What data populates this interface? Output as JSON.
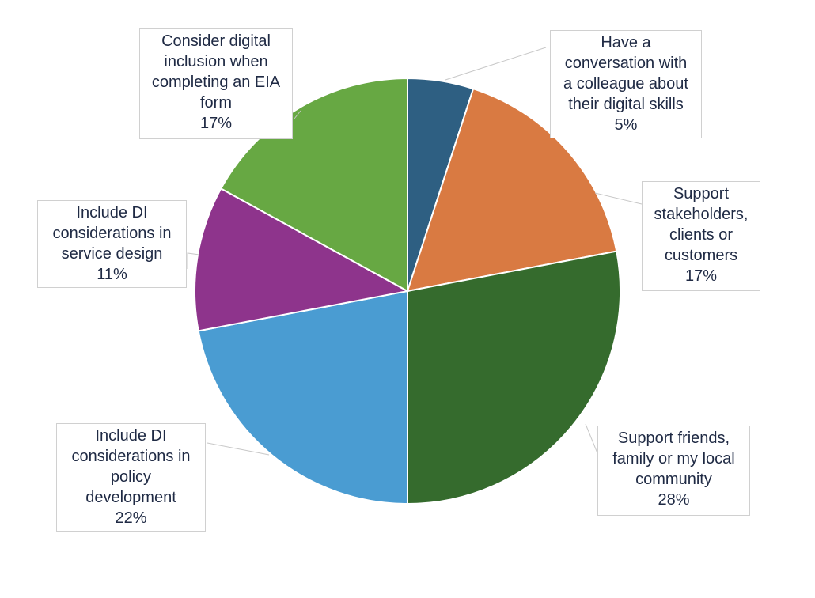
{
  "chart_data": {
    "type": "pie",
    "slices": [
      {
        "label_lines": [
          "Have a",
          "conversation with",
          "a colleague about",
          "their digital skills"
        ],
        "pct_text": "5%",
        "value": 5,
        "color": "#2e5f82"
      },
      {
        "label_lines": [
          "Support",
          "stakeholders,",
          "clients or",
          "customers"
        ],
        "pct_text": "17%",
        "value": 17,
        "color": "#d97a42"
      },
      {
        "label_lines": [
          "Support friends,",
          "family or my local",
          "community"
        ],
        "pct_text": "28%",
        "value": 28,
        "color": "#356b2d"
      },
      {
        "label_lines": [
          "Include DI",
          "considerations in",
          "policy",
          "development"
        ],
        "pct_text": "22%",
        "value": 22,
        "color": "#4a9cd2"
      },
      {
        "label_lines": [
          "Include DI",
          "considerations in",
          "service design"
        ],
        "pct_text": "11%",
        "value": 11,
        "color": "#8e348c"
      },
      {
        "label_lines": [
          "Consider digital",
          "inclusion when",
          "completing an EIA",
          "form"
        ],
        "pct_text": "17%",
        "value": 17,
        "color": "#67a843"
      }
    ]
  }
}
